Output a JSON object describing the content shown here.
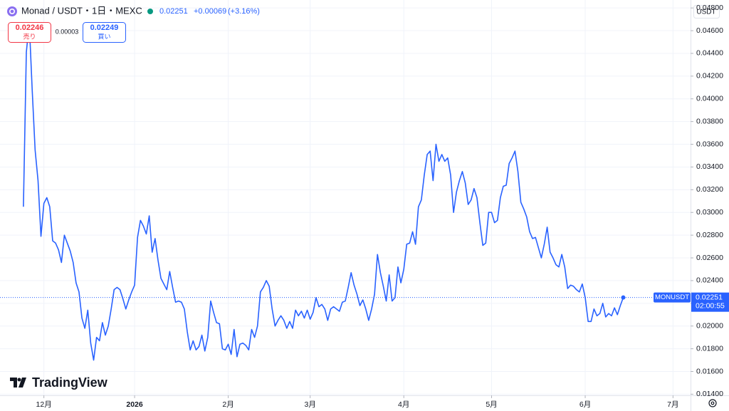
{
  "chart_data": {
    "type": "line",
    "title": "Monad / USDT・1日・MEXC",
    "change": "+0.00069",
    "change_pct": "(+3.16%)",
    "bid": {
      "price": "0.02246",
      "label": "売り"
    },
    "spread": "0.00003",
    "ask": {
      "price": "0.02249",
      "label": "買い"
    },
    "currency": "USDT",
    "countdown": "02:00:55",
    "brand": "TradingView",
    "grid": true,
    "xlim": [
      -8,
      228
    ],
    "xticks": [
      {
        "value": 7,
        "label": "12月"
      },
      {
        "value": 38,
        "label": "2026"
      },
      {
        "value": 70,
        "label": "2月"
      },
      {
        "value": 98,
        "label": "3月"
      },
      {
        "value": 130,
        "label": "4月"
      },
      {
        "value": 160,
        "label": "5月"
      },
      {
        "value": 192,
        "label": "6月"
      },
      {
        "value": 222,
        "label": "7月"
      }
    ],
    "ylim": [
      0.0139,
      0.0487
    ],
    "yticks": [
      {
        "value": 0.014,
        "label": "0.01400"
      },
      {
        "value": 0.016,
        "label": "0.01600"
      },
      {
        "value": 0.018,
        "label": "0.01800"
      },
      {
        "value": 0.02,
        "label": "0.02000"
      },
      {
        "value": 0.022,
        "label": "0.02200"
      },
      {
        "value": 0.024,
        "label": "0.02400"
      },
      {
        "value": 0.026,
        "label": "0.02600"
      },
      {
        "value": 0.028,
        "label": "0.02800"
      },
      {
        "value": 0.03,
        "label": "0.03000"
      },
      {
        "value": 0.032,
        "label": "0.03200"
      },
      {
        "value": 0.034,
        "label": "0.03400"
      },
      {
        "value": 0.036,
        "label": "0.03600"
      },
      {
        "value": 0.038,
        "label": "0.03800"
      },
      {
        "value": 0.04,
        "label": "0.04000"
      },
      {
        "value": 0.042,
        "label": "0.04200"
      },
      {
        "value": 0.044,
        "label": "0.04400"
      },
      {
        "value": 0.046,
        "label": "0.04600"
      },
      {
        "value": 0.048,
        "label": "0.04800"
      }
    ],
    "x": [
      0,
      1,
      2,
      3,
      4,
      5,
      6,
      7,
      8,
      9,
      10,
      11,
      12,
      13,
      14,
      15,
      16,
      17,
      18,
      19,
      20,
      21,
      22,
      23,
      24,
      25,
      26,
      27,
      28,
      29,
      30,
      31,
      32,
      33,
      34,
      35,
      36,
      37,
      38,
      39,
      40,
      41,
      42,
      43,
      44,
      45,
      46,
      47,
      48,
      49,
      50,
      51,
      52,
      53,
      54,
      55,
      56,
      57,
      58,
      59,
      60,
      61,
      62,
      63,
      64,
      65,
      66,
      67,
      68,
      69,
      70,
      71,
      72,
      73,
      74,
      75,
      76,
      77,
      78,
      79,
      80,
      81,
      82,
      83,
      84,
      85,
      86,
      87,
      88,
      89,
      90,
      91,
      92,
      93,
      94,
      95,
      96,
      97,
      98,
      99,
      100,
      101,
      102,
      103,
      104,
      105,
      106,
      107,
      108,
      109,
      110,
      111,
      112,
      113,
      114,
      115,
      116,
      117,
      118,
      119,
      120,
      121,
      122,
      123,
      124,
      125,
      126,
      127,
      128,
      129,
      130,
      131,
      132,
      133,
      134,
      135,
      136,
      137,
      138,
      139,
      140,
      141,
      142,
      143,
      144,
      145,
      146,
      147,
      148,
      149,
      150,
      151,
      152,
      153,
      154,
      155,
      156,
      157,
      158,
      159,
      160,
      161,
      162,
      163,
      164,
      165,
      166,
      167,
      168,
      169,
      170,
      171,
      172,
      173,
      174,
      175,
      176,
      177,
      178,
      179,
      180,
      181,
      182,
      183,
      184,
      185,
      186,
      187,
      188,
      189,
      190,
      191,
      192,
      193,
      194,
      195,
      196,
      197,
      198,
      199,
      200,
      201,
      202,
      203,
      204,
      205
    ],
    "series": [
      {
        "name": "MONUSDT",
        "color": "#2962ff",
        "values": [
          0.0305,
          0.0441,
          0.0467,
          0.0408,
          0.0355,
          0.0328,
          0.0279,
          0.0308,
          0.0313,
          0.0305,
          0.0275,
          0.0273,
          0.0267,
          0.0256,
          0.028,
          0.0273,
          0.0266,
          0.0256,
          0.0238,
          0.023,
          0.0207,
          0.0198,
          0.0214,
          0.0185,
          0.017,
          0.019,
          0.0187,
          0.0203,
          0.0192,
          0.02,
          0.0215,
          0.0232,
          0.0234,
          0.0232,
          0.0224,
          0.0215,
          0.0223,
          0.023,
          0.0236,
          0.0278,
          0.0293,
          0.0288,
          0.0281,
          0.0297,
          0.0265,
          0.0277,
          0.0258,
          0.0242,
          0.0237,
          0.0232,
          0.0248,
          0.0234,
          0.0221,
          0.0222,
          0.0221,
          0.0215,
          0.0195,
          0.0179,
          0.0187,
          0.0179,
          0.0182,
          0.0192,
          0.0178,
          0.019,
          0.0222,
          0.0212,
          0.0203,
          0.0202,
          0.018,
          0.0179,
          0.0184,
          0.0175,
          0.0197,
          0.0173,
          0.0184,
          0.0185,
          0.0183,
          0.0179,
          0.0197,
          0.019,
          0.02,
          0.023,
          0.0234,
          0.024,
          0.0235,
          0.0215,
          0.02,
          0.0205,
          0.0209,
          0.0205,
          0.0198,
          0.0204,
          0.0198,
          0.0214,
          0.0209,
          0.0213,
          0.0207,
          0.0214,
          0.0206,
          0.0212,
          0.0225,
          0.0217,
          0.0219,
          0.0215,
          0.0205,
          0.0215,
          0.0217,
          0.0215,
          0.0213,
          0.0221,
          0.0222,
          0.0234,
          0.0247,
          0.0236,
          0.0228,
          0.0218,
          0.0223,
          0.0215,
          0.0205,
          0.0215,
          0.0228,
          0.0263,
          0.0247,
          0.0235,
          0.0222,
          0.0245,
          0.0222,
          0.0225,
          0.0252,
          0.0238,
          0.025,
          0.0272,
          0.0273,
          0.0283,
          0.0272,
          0.0305,
          0.0311,
          0.0333,
          0.0351,
          0.0354,
          0.0328,
          0.036,
          0.0345,
          0.0351,
          0.0345,
          0.0348,
          0.0333,
          0.03,
          0.0318,
          0.0328,
          0.0336,
          0.0326,
          0.0307,
          0.0311,
          0.0321,
          0.0313,
          0.0291,
          0.0271,
          0.0273,
          0.03,
          0.03,
          0.0291,
          0.0293,
          0.0313,
          0.0323,
          0.0324,
          0.0343,
          0.0348,
          0.0354,
          0.0336,
          0.0309,
          0.0303,
          0.0296,
          0.0283,
          0.0277,
          0.0278,
          0.0269,
          0.026,
          0.0272,
          0.0287,
          0.0265,
          0.026,
          0.0254,
          0.0252,
          0.0263,
          0.0252,
          0.0233,
          0.0236,
          0.0235,
          0.0232,
          0.023,
          0.0237,
          0.0225,
          0.0204,
          0.0204,
          0.0215,
          0.0209,
          0.0211,
          0.022,
          0.0208,
          0.0211,
          0.0209,
          0.0216,
          0.021,
          0.0218,
          0.02251
        ]
      }
    ]
  }
}
